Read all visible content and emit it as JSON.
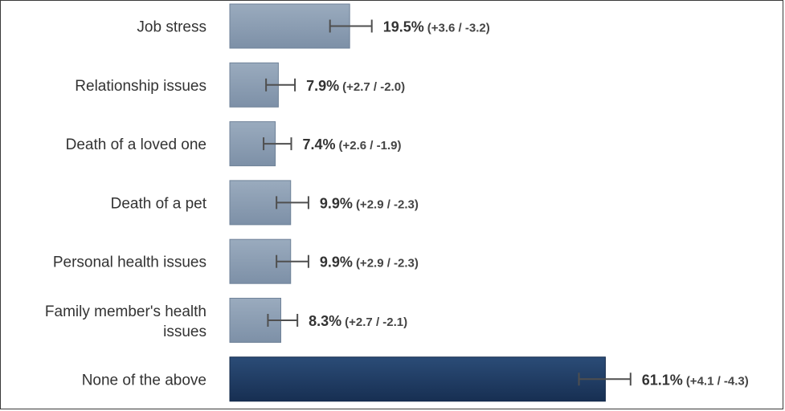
{
  "chart_data": {
    "type": "bar",
    "orientation": "horizontal",
    "categories": [
      "Job stress",
      "Relationship issues",
      "Death of a loved one",
      "Death of a pet",
      "Personal health issues",
      "Family member's health issues",
      "None of the above"
    ],
    "values": [
      19.5,
      7.9,
      7.4,
      9.9,
      9.9,
      8.3,
      61.1
    ],
    "value_labels": [
      "19.5%",
      "7.9%",
      "7.4%",
      "9.9%",
      "9.9%",
      "8.3%",
      "61.1%"
    ],
    "error_plus": [
      3.6,
      2.7,
      2.6,
      2.9,
      2.9,
      2.7,
      4.1
    ],
    "error_minus": [
      3.2,
      2.0,
      1.9,
      2.3,
      2.3,
      2.1,
      4.3
    ],
    "error_labels": [
      "(+3.6 / -3.2)",
      "(+2.7 / -2.0)",
      "(+2.6 / -1.9)",
      "(+2.9 / -2.3)",
      "(+2.9 / -2.3)",
      "(+2.7 / -2.1)",
      "(+4.1 / -4.3)"
    ],
    "xlim": [
      0,
      100
    ],
    "grid": false,
    "legend": "none",
    "colors": {
      "bar": "#8497ad",
      "bar_highlight": "#1c3a62",
      "error_bar": "#4f4f4f"
    },
    "highlight_index": 6
  }
}
